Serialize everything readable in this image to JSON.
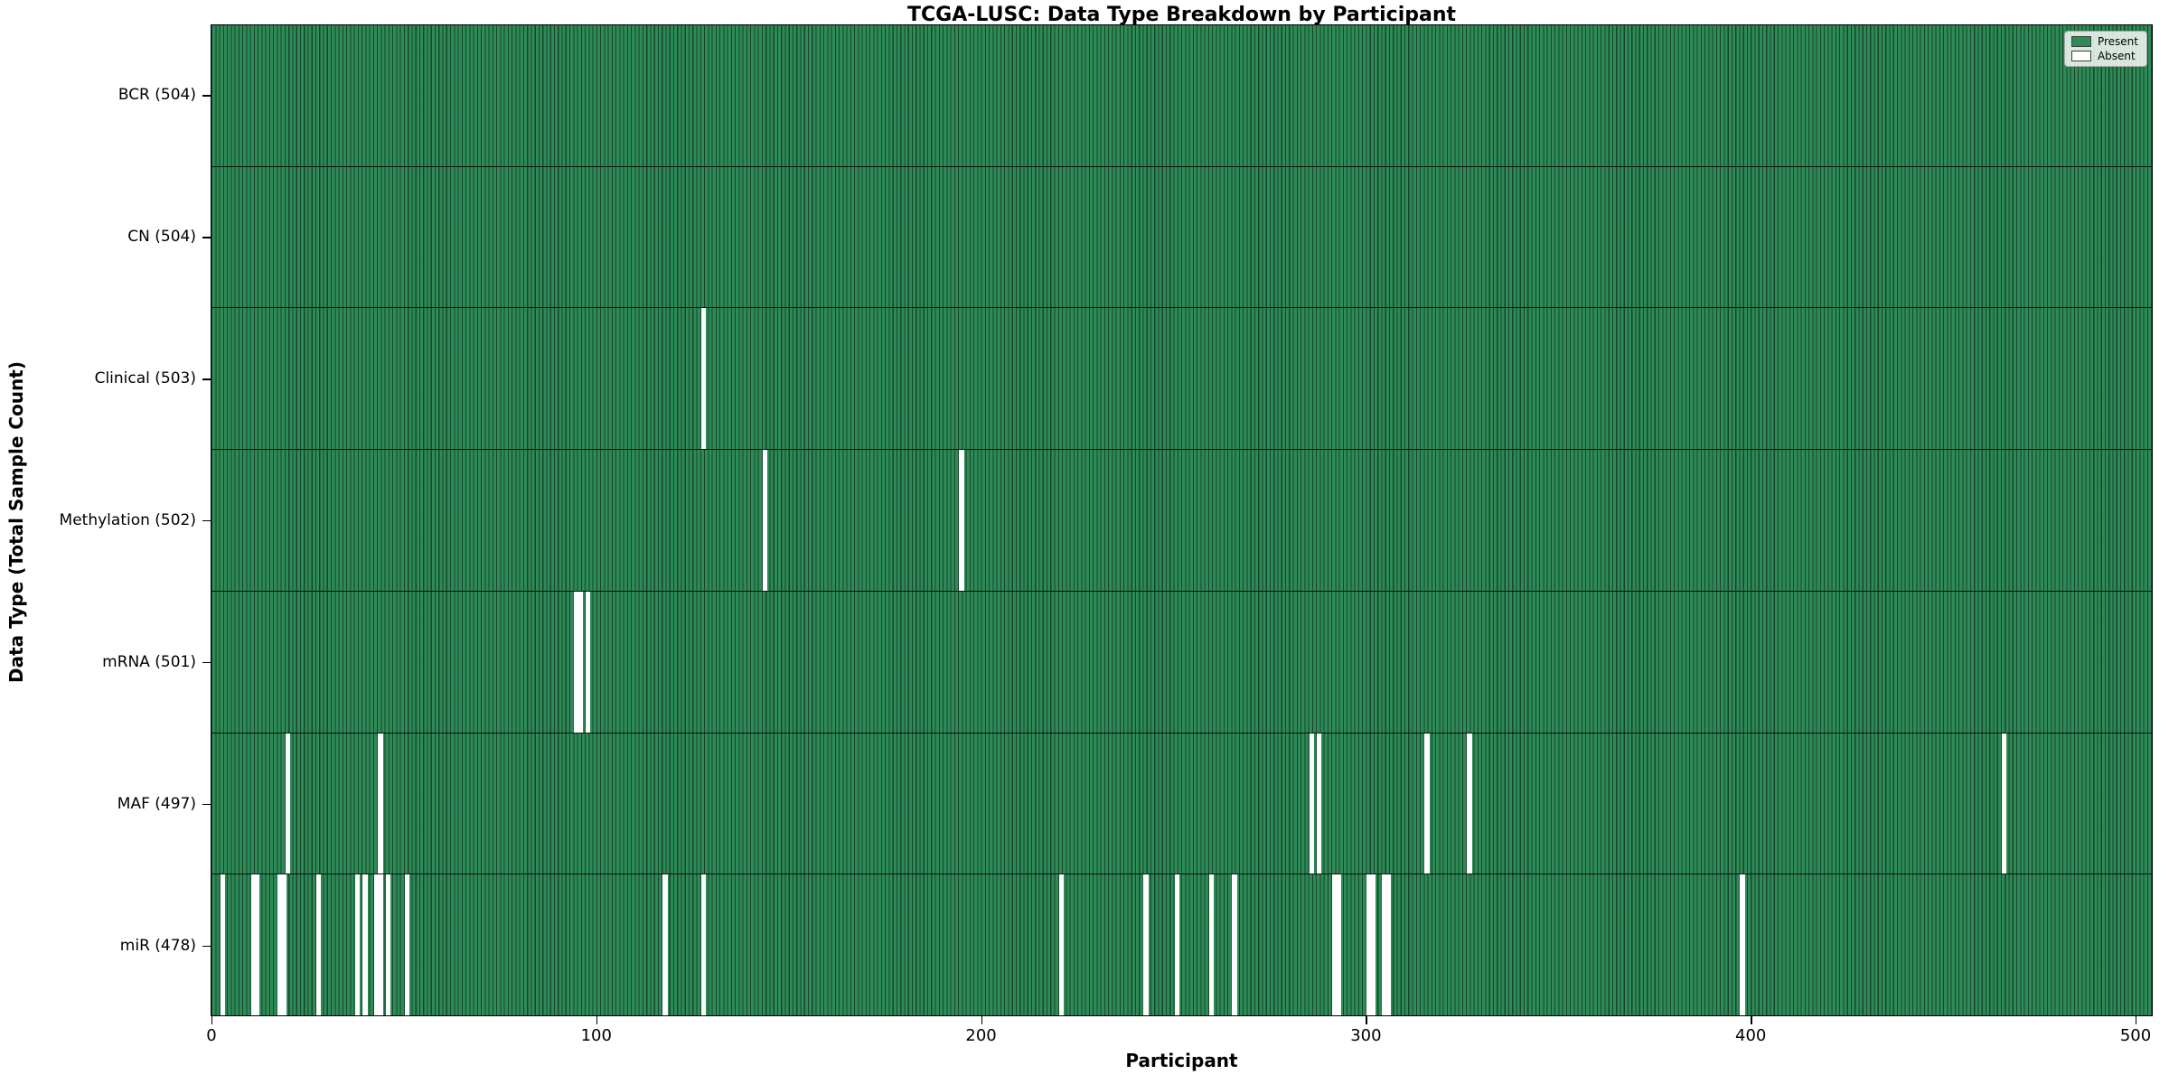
{
  "title": "TCGA-LUSC: Data Type Breakdown by Participant",
  "xlabel": "Participant",
  "ylabel": "Data Type (Total Sample Count)",
  "legend": {
    "items": [
      {
        "label": "Present",
        "color": "#2e8b57"
      },
      {
        "label": "Absent",
        "color": "#ffffff"
      }
    ],
    "position": "upper right"
  },
  "colors": {
    "present": "#2e8b57",
    "absent": "#ffffff",
    "bar_edge": "#1e5c3a",
    "row_separator": "#09130d",
    "spine": "#000000"
  },
  "chart_data": {
    "type": "heatmap",
    "title": "TCGA-LUSC: Data Type Breakdown by Participant",
    "xlabel": "Participant",
    "ylabel": "Data Type (Total Sample Count)",
    "x_ticks": [
      0,
      100,
      200,
      300,
      400,
      500
    ],
    "xlim": [
      0,
      505
    ],
    "n_participants": 504,
    "grid": false,
    "legend_position": "upper right",
    "rows": [
      {
        "label": "BCR (504)",
        "data_type": "BCR",
        "present_count": 504,
        "absent_participants": []
      },
      {
        "label": "CN (504)",
        "data_type": "CN",
        "present_count": 504,
        "absent_participants": []
      },
      {
        "label": "Clinical (503)",
        "data_type": "Clinical",
        "present_count": 503,
        "absent_participants": [
          128
        ]
      },
      {
        "label": "Methylation (502)",
        "data_type": "Methylation",
        "present_count": 502,
        "absent_participants": [
          144,
          195
        ]
      },
      {
        "label": "mRNA (501)",
        "data_type": "mRNA",
        "present_count": 501,
        "absent_participants": [
          95,
          96,
          98
        ]
      },
      {
        "label": "MAF (497)",
        "data_type": "MAF",
        "present_count": 497,
        "absent_participants": [
          20,
          44,
          286,
          288,
          316,
          327,
          466
        ]
      },
      {
        "label": "miR (478)",
        "data_type": "miR",
        "present_count": 478,
        "absent_participants": [
          3,
          11,
          12,
          18,
          19,
          28,
          38,
          40,
          43,
          44,
          46,
          51,
          118,
          128,
          221,
          243,
          251,
          260,
          266,
          292,
          293,
          301,
          302,
          305,
          306,
          398
        ]
      }
    ]
  }
}
